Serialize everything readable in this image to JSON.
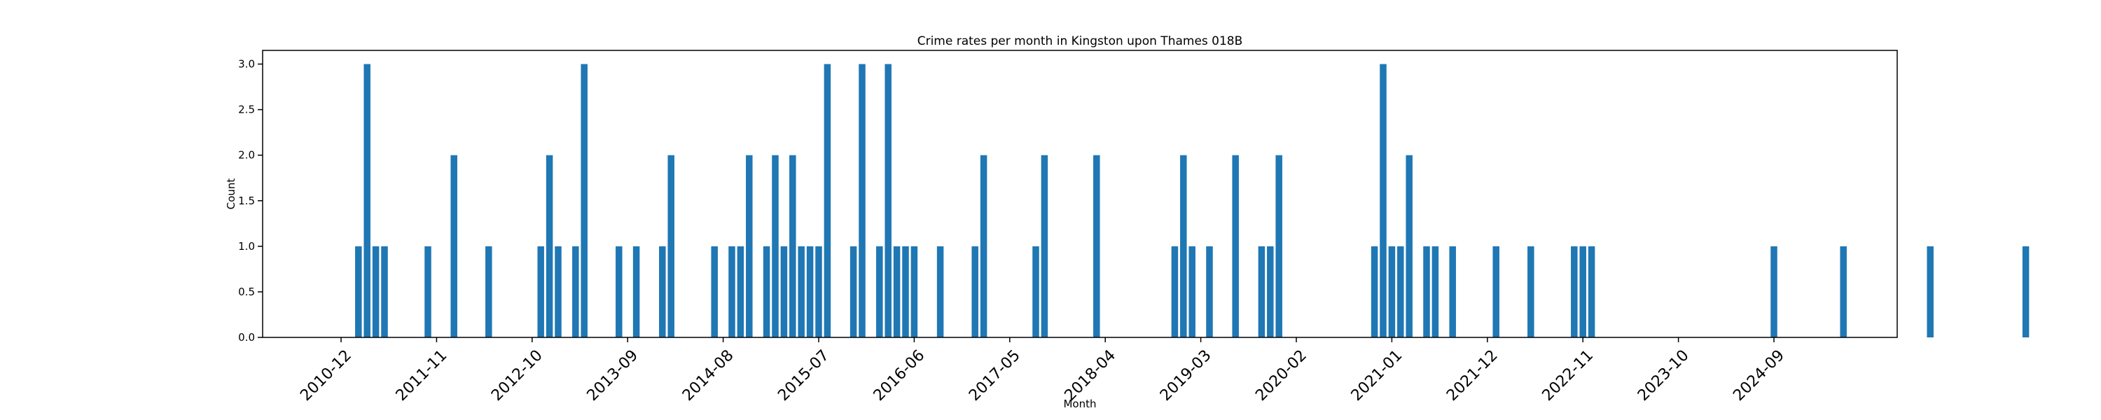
{
  "chart_data": {
    "type": "bar",
    "title": "Crime rates per month in Kingston upon Thames 018B",
    "xlabel": "Month",
    "ylabel": "Count",
    "ylim": [
      0,
      3.15
    ],
    "y_ticks": [
      "0.0",
      "0.5",
      "1.0",
      "1.5",
      "2.0",
      "2.5",
      "3.0"
    ],
    "x_tick_labels": [
      "2010-12",
      "2011-11",
      "2012-10",
      "2013-09",
      "2014-08",
      "2015-07",
      "2016-06",
      "2017-05",
      "2018-04",
      "2019-03",
      "2020-02",
      "2021-01",
      "2021-12",
      "2022-11",
      "2023-10",
      "2024-09"
    ],
    "grid": false,
    "bar_color": "#1f77b4",
    "categories": [
      "2011-02",
      "2011-03",
      "2011-04",
      "2011-05",
      "2011-10",
      "2012-01",
      "2012-05",
      "2012-11",
      "2012-12",
      "2013-01",
      "2013-03",
      "2013-04",
      "2013-08",
      "2013-10",
      "2014-01",
      "2014-02",
      "2014-07",
      "2014-09",
      "2014-10",
      "2014-11",
      "2015-01",
      "2015-02",
      "2015-03",
      "2015-04",
      "2015-05",
      "2015-06",
      "2015-07",
      "2015-08",
      "2015-11",
      "2015-12",
      "2016-02",
      "2016-03",
      "2016-04",
      "2016-05",
      "2016-06",
      "2016-09",
      "2017-01",
      "2017-02",
      "2017-08",
      "2017-09",
      "2018-03",
      "2018-12",
      "2019-01",
      "2019-02",
      "2019-04",
      "2019-07",
      "2019-10",
      "2019-11",
      "2019-12",
      "2020-11",
      "2020-12",
      "2021-01",
      "2021-02",
      "2021-03",
      "2021-05",
      "2021-06",
      "2021-08",
      "2022-01",
      "2022-05",
      "2022-10",
      "2022-11",
      "2022-12",
      "2024-09",
      "2025-05",
      "2026-03",
      "2027-02"
    ],
    "values": [
      1,
      3,
      1,
      1,
      1,
      2,
      1,
      1,
      2,
      1,
      1,
      3,
      1,
      1,
      1,
      2,
      1,
      1,
      1,
      2,
      1,
      2,
      1,
      2,
      1,
      1,
      1,
      3,
      1,
      3,
      1,
      3,
      1,
      1,
      1,
      1,
      1,
      2,
      1,
      2,
      2,
      1,
      2,
      1,
      1,
      2,
      1,
      1,
      2,
      1,
      3,
      1,
      1,
      2,
      1,
      1,
      1,
      1,
      1,
      1,
      1,
      1,
      1,
      1,
      1,
      1
    ]
  }
}
